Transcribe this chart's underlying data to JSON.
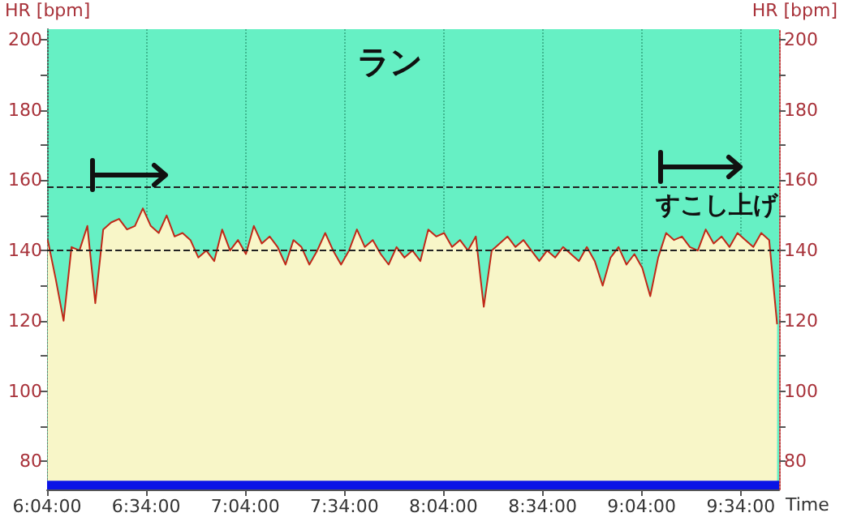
{
  "chart_data": {
    "type": "area",
    "xlabel": "Time",
    "ylabel": "HR [bpm]",
    "y2label": "HR [bpm]",
    "annotations": [
      "ラン",
      "すこし上げ"
    ],
    "x": [
      6.07,
      6.11,
      6.15,
      6.19,
      6.23,
      6.27,
      6.31,
      6.35,
      6.39,
      6.43,
      6.47,
      6.51,
      6.55,
      6.59,
      6.63,
      6.67,
      6.71,
      6.75,
      6.79,
      6.83,
      6.87,
      6.91,
      6.95,
      6.99,
      7.03,
      7.07,
      7.11,
      7.15,
      7.19,
      7.23,
      7.27,
      7.31,
      7.35,
      7.39,
      7.43,
      7.47,
      7.51,
      7.55,
      7.59,
      7.63,
      7.67,
      7.71,
      7.75,
      7.79,
      7.83,
      7.87,
      7.91,
      7.95,
      7.99,
      8.03,
      8.07,
      8.11,
      8.15,
      8.19,
      8.23,
      8.27,
      8.31,
      8.35,
      8.39,
      8.43,
      8.47,
      8.51,
      8.55,
      8.59,
      8.63,
      8.67,
      8.71,
      8.75,
      8.79,
      8.83,
      8.87,
      8.91,
      8.95,
      8.99,
      9.03,
      9.07,
      9.11,
      9.15,
      9.19,
      9.23,
      9.27,
      9.31,
      9.35,
      9.39,
      9.43,
      9.47,
      9.51,
      9.55,
      9.59,
      9.63,
      9.67,
      9.71,
      9.75
    ],
    "series": [
      {
        "color": "#c02818",
        "values": [
          143,
          132,
          120,
          141,
          140,
          147,
          125,
          146,
          148,
          149,
          146,
          147,
          152,
          147,
          145,
          150,
          144,
          145,
          143,
          138,
          140,
          137,
          146,
          140,
          143,
          139,
          147,
          142,
          144,
          141,
          136,
          143,
          141,
          136,
          140,
          145,
          140,
          136,
          140,
          146,
          141,
          143,
          139,
          136,
          141,
          138,
          140,
          137,
          146,
          144,
          145,
          141,
          143,
          140,
          144,
          124,
          140,
          142,
          144,
          141,
          143,
          140,
          137,
          140,
          138,
          141,
          139,
          137,
          141,
          137,
          130,
          138,
          141,
          136,
          139,
          135,
          127,
          138,
          145,
          143,
          144,
          141,
          140,
          146,
          142,
          144,
          141,
          145,
          143,
          141,
          145,
          143,
          119
        ]
      }
    ],
    "xlim": [
      6.0666667,
      9.76
    ],
    "xticks": [
      {
        "value": 6.0666667,
        "label": "6:04:00"
      },
      {
        "value": 6.5666667,
        "label": "6:34:00"
      },
      {
        "value": 7.0666667,
        "label": "7:04:00"
      },
      {
        "value": 7.5666667,
        "label": "7:34:00"
      },
      {
        "value": 8.0666667,
        "label": "8:04:00"
      },
      {
        "value": 8.5666667,
        "label": "8:34:00"
      },
      {
        "value": 9.0666667,
        "label": "9:04:00"
      },
      {
        "value": 9.5666667,
        "label": "9:34:00"
      }
    ],
    "ylim": [
      72,
      203
    ],
    "yticks": [
      80,
      {
        "value": 90,
        "label": null
      },
      100,
      {
        "value": 110,
        "label": null
      },
      120,
      {
        "value": 130,
        "label": null
      },
      140,
      {
        "value": 150,
        "label": null
      },
      160,
      {
        "value": 170,
        "label": null
      },
      180,
      {
        "value": 190,
        "label": null
      },
      200
    ],
    "y2lim": [
      72,
      203
    ],
    "y2ticks": [
      80,
      {
        "value": 90,
        "label": null
      },
      100,
      {
        "value": 110,
        "label": null
      },
      120,
      {
        "value": 130,
        "label": null
      },
      140,
      {
        "value": 150,
        "label": null
      },
      160,
      {
        "value": 170,
        "label": null
      },
      180,
      {
        "value": 190,
        "label": null
      },
      200
    ],
    "ref_lines": [
      {
        "axis": "y",
        "value": 158,
        "color": "#222222",
        "line_style": "dashed"
      },
      {
        "axis": "y",
        "value": 140,
        "color": "#222222",
        "line_style": "dashed"
      }
    ],
    "bands": [
      {
        "axis": "x",
        "from": 6.0666667,
        "to": 9.76,
        "color": "#66f0c4"
      },
      {
        "axis": "y",
        "from": 72,
        "to": 74.5,
        "color": "#0a14e6"
      }
    ],
    "grid": "x"
  }
}
